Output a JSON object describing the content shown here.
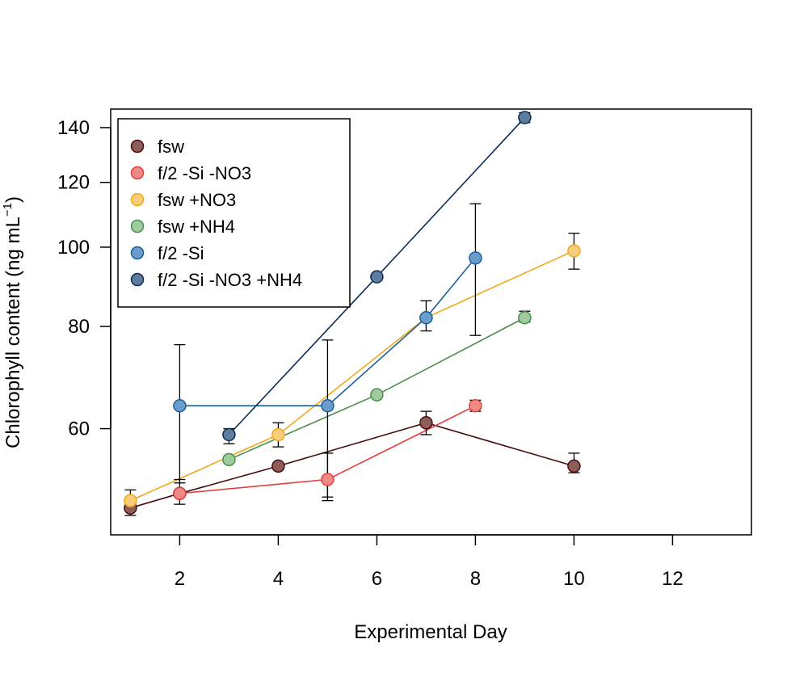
{
  "chart_data": {
    "type": "scatter",
    "title": "",
    "xlabel": "Experimental Day",
    "ylabel_main": "Chlorophyll content (ng mL",
    "ylabel_sup": "−1",
    "ylabel_close": ")",
    "xlim": [
      0.6,
      13.6
    ],
    "ylim": [
      44.5,
      147.5
    ],
    "yscale": "log",
    "xticks": [
      2,
      4,
      6,
      8,
      10,
      12
    ],
    "yticks": [
      60,
      80,
      100,
      120,
      140
    ],
    "legend_position": "top-left",
    "series": [
      {
        "name": "fsw",
        "line": "#4a0d0d",
        "fill": "#8e5d5a",
        "x": [
          1,
          2,
          4,
          7,
          10
        ],
        "y": [
          48,
          50,
          54,
          61,
          54
        ],
        "err": [
          [
            47,
            49
          ],
          null,
          null,
          [
            59,
            63
          ],
          [
            53,
            56
          ]
        ]
      },
      {
        "name": "f/2 -Si -NO3",
        "line": "#e3403c",
        "fill": "#f08a86",
        "x": [
          2,
          5,
          8
        ],
        "y": [
          50,
          52,
          64
        ],
        "err": [
          [
            48.5,
            52
          ],
          [
            49,
            56
          ],
          [
            63,
            65
          ]
        ]
      },
      {
        "name": "fsw +NO3",
        "line": "#f0a81c",
        "fill": "#f7cd7a",
        "x": [
          1,
          4,
          7,
          10
        ],
        "y": [
          49,
          59,
          82,
          99
        ],
        "err": [
          [
            48,
            50.5
          ],
          [
            57,
            61
          ],
          [
            79,
            86
          ],
          [
            94,
            104
          ]
        ]
      },
      {
        "name": "fsw +NH4",
        "line": "#4a8d4d",
        "fill": "#9fcc9f",
        "x": [
          3,
          6,
          9
        ],
        "y": [
          55,
          66,
          82
        ],
        "err": [
          null,
          null,
          [
            81,
            83.5
          ]
        ]
      },
      {
        "name": "f/2 -Si",
        "line": "#1a5f9a",
        "fill": "#6a9ccc",
        "x": [
          2,
          5,
          7,
          8
        ],
        "y": [
          64,
          64,
          82,
          97
        ],
        "err": [
          [
            51.5,
            76
          ],
          [
            49.5,
            77
          ],
          null,
          [
            78,
            113
          ]
        ]
      },
      {
        "name": "f/2 -Si -NO3 +NH4",
        "line": "#0d2d55",
        "fill": "#5e7d9e",
        "x": [
          3,
          6,
          9
        ],
        "y": [
          59,
          92,
          144
        ],
        "err": [
          [
            57.5,
            60
          ],
          null,
          [
            142,
            146
          ]
        ]
      }
    ]
  }
}
